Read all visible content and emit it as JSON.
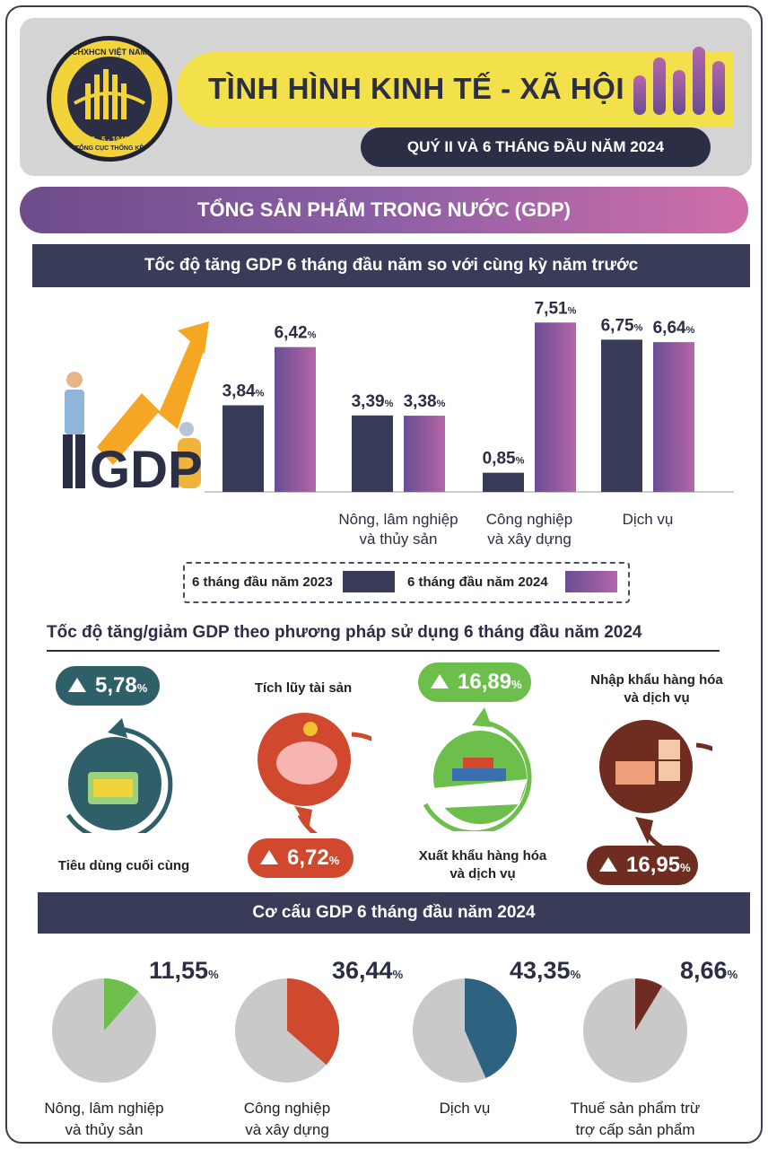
{
  "header": {
    "title": "TÌNH HÌNH KINH TẾ - XÃ HỘI",
    "subtitle": "QUÝ II VÀ 6 THÁNG ĐẦU NĂM 2024",
    "logo_text_top": "CHXHCN VIỆT NAM",
    "logo_text_date": "6 - 5 - 1946",
    "logo_text_bottom": "TỔNG CỤC THỐNG KÊ"
  },
  "section_title": "TỔNG SẢN PHẨM TRONG NƯỚC (GDP)",
  "colors": {
    "dark": "#393c58",
    "purple_start": "#6a4d94",
    "purple_end": "#b466a8",
    "teal": "#2f5f68",
    "red": "#d0492e",
    "green": "#6cbf4a",
    "brown": "#6e2d20",
    "pie_gray": "#c9c9c9",
    "pie_blue": "#2d6380"
  },
  "growth_chart": {
    "title": "Tốc độ tăng GDP 6 tháng đầu năm so với cùng kỳ năm trước",
    "illustration_text": "GDP",
    "legend": {
      "s2023": "6 tháng đầu năm 2023",
      "s2024": "6 tháng đầu năm 2024"
    }
  },
  "chart_data": [
    {
      "type": "bar",
      "title": "Tốc độ tăng GDP 6 tháng đầu năm so với cùng kỳ năm trước",
      "categories": [
        "",
        "Nông, lâm nghiệp và thủy sản",
        "Công nghiệp và xây dựng",
        "Dịch vụ"
      ],
      "category_lines": [
        [],
        [
          "Nông, lâm nghiệp",
          "và thủy sản"
        ],
        [
          "Công nghiệp",
          "và xây dựng"
        ],
        [
          "Dịch vụ"
        ]
      ],
      "series": [
        {
          "name": "6 tháng đầu năm 2023",
          "values": [
            3.84,
            3.39,
            0.85,
            6.75
          ],
          "labels": [
            "3,84",
            "3,39",
            "0,85",
            "6,75"
          ]
        },
        {
          "name": "6 tháng đầu năm 2024",
          "values": [
            6.42,
            3.38,
            7.51,
            6.64
          ],
          "labels": [
            "6,42",
            "3,38",
            "7,51",
            "6,64"
          ]
        }
      ],
      "unit": "%",
      "ylim": [
        0,
        8
      ],
      "grid": false,
      "legend_position": "bottom"
    },
    {
      "type": "pie",
      "title": "Cơ cấu GDP 6 tháng đầu năm 2024",
      "charts": [
        {
          "label_lines": [
            "Nông, lâm nghiệp",
            "và thủy sản"
          ],
          "value": 11.55,
          "value_label": "11,55",
          "color": "#6cbf4a"
        },
        {
          "label_lines": [
            "Công nghiệp",
            "và xây dựng"
          ],
          "value": 36.44,
          "value_label": "36,44",
          "color": "#d0492e"
        },
        {
          "label_lines": [
            "Dịch vụ"
          ],
          "value": 43.35,
          "value_label": "43,35",
          "color": "#2d6380"
        },
        {
          "label_lines": [
            "Thuế sản phẩm trừ",
            "trợ cấp sản phẩm"
          ],
          "value": 8.66,
          "value_label": "8,66",
          "color": "#6e2d20"
        }
      ],
      "unit": "%"
    }
  ],
  "usage": {
    "title": "Tốc độ tăng/giảm GDP theo phương pháp sử dụng 6 tháng đầu năm 2024",
    "items": [
      {
        "label": "Tiêu dùng cuối cùng",
        "value": "5,78",
        "direction": "up",
        "color": "#2f5f68"
      },
      {
        "label": "Tích lũy tài sản",
        "value": "6,72",
        "direction": "up",
        "color": "#d0492e"
      },
      {
        "label_line1": "Xuất khẩu hàng hóa",
        "label_line2": "và dịch vụ",
        "value": "16,89",
        "direction": "up",
        "color": "#6cbf4a"
      },
      {
        "label_line1": "Nhập khẩu hàng hóa",
        "label_line2": "và dịch vụ",
        "value": "16,95",
        "direction": "up",
        "color": "#6e2d20"
      }
    ],
    "unit": "%"
  },
  "structure": {
    "title": "Cơ cấu GDP 6 tháng đầu năm 2024"
  }
}
